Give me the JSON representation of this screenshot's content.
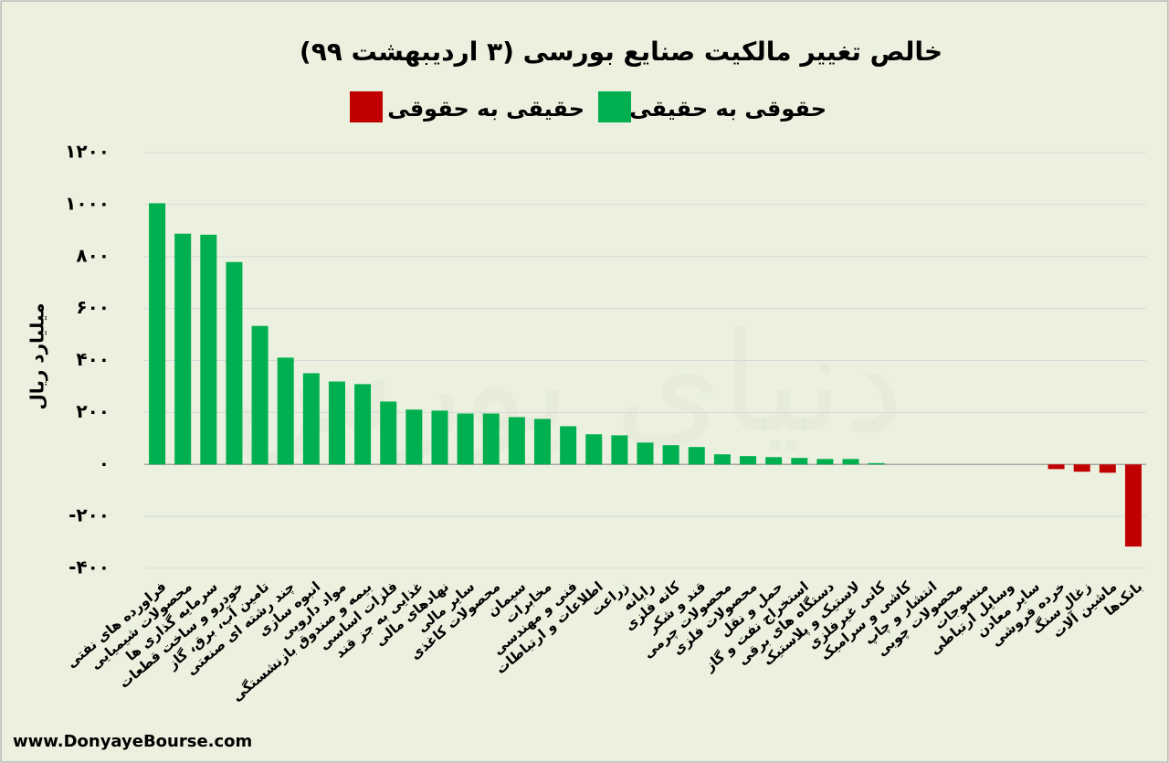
{
  "chart_data": {
    "type": "bar",
    "title": "خالص تغییر مالکیت صنایع بورسی (۳ اردیبهشت ۹۹)",
    "y_label": "میلیارد ریال",
    "source": "www.DonyayeBourse.com",
    "watermark": "دنیای بورس",
    "categories": [
      "فراورده های نفتی",
      "محصولات شیمیایی",
      "سرمایه گذاری ها",
      "خودرو و ساخت قطعات",
      "تامین آب، برق، گاز",
      "چند رشته ای صنعتی",
      "انبوه سازی",
      "مواد دارویی",
      "بیمه و صندوق بازنشستگی",
      "فلزات اساسی",
      "غذایی به جز قند",
      "نهادهای مالی",
      "سایر مالی",
      "محصولات کاغذی",
      "سیمان",
      "مخابرات",
      "فنی و مهندسی",
      "اطلاعات و ارتباطات",
      "زراعت",
      "رایانه",
      "کانه فلزی",
      "قند و شکر",
      "محصولات چرمی",
      "محصولات فلزی",
      "حمل و نقل",
      "استخراج نفت و گاز",
      "دستگاه های برقی",
      "لاستیک و پلاستیک",
      "کانی غیرفلزی",
      "کاشی و سرامیک",
      "انتشار و چاپ",
      "محصولات چوبی",
      "منسوجات",
      "وسایل ارتباطی",
      "سایر معادن",
      "خرده فروشی",
      "زغال سنگ",
      "ماشین آلات",
      "بانک‌ها"
    ],
    "series": [
      {
        "name": "حقوقی به حقیقی",
        "color": "#00b050",
        "values": [
          1005,
          888,
          884,
          779,
          533,
          411,
          351,
          319,
          309,
          242,
          211,
          207,
          196,
          196,
          182,
          175,
          147,
          116,
          112,
          84,
          74,
          67,
          39,
          32,
          28,
          25,
          21,
          21,
          5,
          0,
          0,
          0,
          0,
          0,
          0,
          null,
          null,
          null,
          null
        ]
      },
      {
        "name": "حقیقی به حقوقی",
        "color": "#c00000",
        "values": [
          null,
          null,
          null,
          null,
          null,
          null,
          null,
          null,
          null,
          null,
          null,
          null,
          null,
          null,
          null,
          null,
          null,
          null,
          null,
          null,
          null,
          null,
          null,
          null,
          null,
          null,
          null,
          null,
          null,
          null,
          null,
          null,
          null,
          null,
          null,
          -18,
          -28,
          -32,
          -316
        ]
      }
    ],
    "ylim": [
      -400,
      1200
    ],
    "yticks": [
      {
        "value": -400,
        "label": "-۴۰۰"
      },
      {
        "value": -200,
        "label": "-۲۰۰"
      },
      {
        "value": 0,
        "label": "۰"
      },
      {
        "value": 200,
        "label": "۲۰۰"
      },
      {
        "value": 400,
        "label": "۴۰۰"
      },
      {
        "value": 600,
        "label": "۶۰۰"
      },
      {
        "value": 800,
        "label": "۸۰۰"
      },
      {
        "value": 1000,
        "label": "۱۰۰۰"
      },
      {
        "value": 1200,
        "label": "۱۲۰۰"
      }
    ],
    "grid": true
  }
}
